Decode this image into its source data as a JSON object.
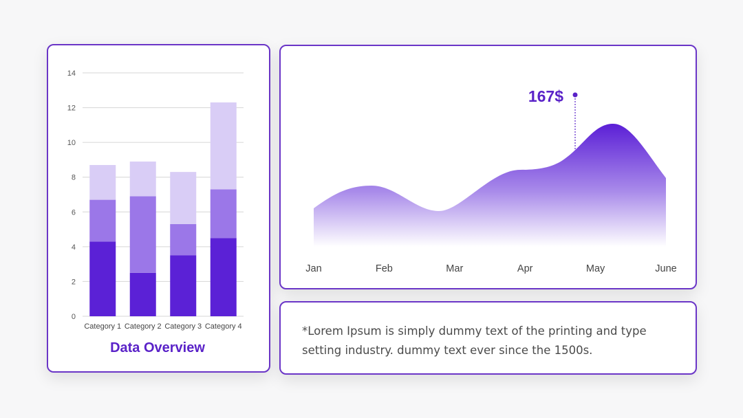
{
  "chart_data": [
    {
      "type": "bar",
      "stacked": true,
      "categories": [
        "Category 1",
        "Category 2",
        "Category 3",
        "Category 4"
      ],
      "series": [
        {
          "values": [
            4.3,
            2.5,
            3.5,
            4.5
          ],
          "color": "#5b21d6"
        },
        {
          "values": [
            2.4,
            4.4,
            1.8,
            2.8
          ],
          "color": "#9b77e8"
        },
        {
          "values": [
            2.0,
            2.0,
            3.0,
            5.0
          ],
          "color": "#d9cdf6"
        }
      ],
      "ylim": [
        0,
        14
      ],
      "yticks": [
        "0",
        "2",
        "4",
        "6",
        "8",
        "10",
        "12",
        "14"
      ],
      "grid": true,
      "caption": "Data Overview"
    },
    {
      "type": "area",
      "categories": [
        "Jan",
        "Feb",
        "Mar",
        "Apr",
        "May",
        "June"
      ],
      "annotation": {
        "label": "167$",
        "month": "May"
      },
      "gradient": {
        "top": "#5b1fd6",
        "bottom": "#ffffff"
      }
    }
  ],
  "note": "*Lorem Ipsum is simply dummy text of the printing and type setting industry. dummy text ever since the 1500s."
}
